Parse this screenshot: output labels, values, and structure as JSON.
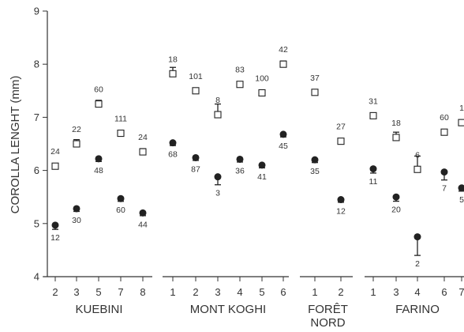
{
  "chart_data": {
    "type": "scatter",
    "ylabel": "COROLLA LENGHT (mm)",
    "ylim": [
      4,
      9
    ],
    "yticks": [
      4,
      5,
      6,
      7,
      8,
      9
    ],
    "groups": [
      {
        "name": "KUEBINI",
        "name_lines": [
          "KUEBINI"
        ],
        "points": [
          {
            "x_label": "2",
            "square": {
              "y": 6.08,
              "n": "24",
              "err": 0.0
            },
            "circle": {
              "y": 4.97,
              "n": "12",
              "err": 0.08
            }
          },
          {
            "x_label": "3",
            "square": {
              "y": 6.5,
              "n": "22",
              "err": 0.08
            },
            "circle": {
              "y": 5.28,
              "n": "30",
              "err": 0.0
            }
          },
          {
            "x_label": "5",
            "square": {
              "y": 7.25,
              "n": "60",
              "err": 0.07
            },
            "circle": {
              "y": 6.22,
              "n": "48",
              "err": 0.0
            }
          },
          {
            "x_label": "7",
            "square": {
              "y": 6.7,
              "n": "111",
              "err": 0.0
            },
            "circle": {
              "y": 5.47,
              "n": "60",
              "err": 0.0
            }
          },
          {
            "x_label": "8",
            "square": {
              "y": 6.35,
              "n": "24",
              "err": 0.06
            },
            "circle": {
              "y": 5.2,
              "n": "44",
              "err": 0.0
            }
          }
        ]
      },
      {
        "name": "MONT KOGHI",
        "name_lines": [
          "MONT KOGHI"
        ],
        "points": [
          {
            "x_label": "1",
            "square": {
              "y": 7.82,
              "n": "18",
              "err": 0.12
            },
            "circle": {
              "y": 6.52,
              "n": "68",
              "err": 0.0
            }
          },
          {
            "x_label": "2",
            "square": {
              "y": 7.5,
              "n": "101",
              "err": 0.0
            },
            "circle": {
              "y": 6.24,
              "n": "87",
              "err": 0.0
            }
          },
          {
            "x_label": "3",
            "square": {
              "y": 7.05,
              "n": "8",
              "err": 0.2
            },
            "circle": {
              "y": 5.88,
              "n": "3",
              "err": 0.15
            }
          },
          {
            "x_label": "4",
            "square": {
              "y": 7.62,
              "n": "83",
              "err": 0.05
            },
            "circle": {
              "y": 6.21,
              "n": "36",
              "err": 0.0
            }
          },
          {
            "x_label": "5",
            "square": {
              "y": 7.46,
              "n": "100",
              "err": 0.0
            },
            "circle": {
              "y": 6.1,
              "n": "41",
              "err": 0.0
            }
          },
          {
            "x_label": "6",
            "square": {
              "y": 8.0,
              "n": "42",
              "err": 0.06
            },
            "circle": {
              "y": 6.68,
              "n": "45",
              "err": 0.05
            }
          }
        ]
      },
      {
        "name": "FORÊT NORD",
        "name_lines": [
          "FORÊT",
          "NORD"
        ],
        "points": [
          {
            "x_label": "1",
            "square": {
              "y": 7.47,
              "n": "37",
              "err": 0.05
            },
            "circle": {
              "y": 6.2,
              "n": "35",
              "err": 0.0
            }
          },
          {
            "x_label": "2",
            "square": {
              "y": 6.55,
              "n": "27",
              "err": 0.04
            },
            "circle": {
              "y": 5.45,
              "n": "12",
              "err": 0.05
            }
          }
        ]
      },
      {
        "name": "FARINO",
        "name_lines": [
          "FARINO"
        ],
        "points": [
          {
            "x_label": "1",
            "square": {
              "y": 7.03,
              "n": "31",
              "err": 0.04
            },
            "circle": {
              "y": 6.03,
              "n": "11",
              "err": 0.08
            }
          },
          {
            "x_label": "3",
            "square": {
              "y": 6.62,
              "n": "18",
              "err": 0.1
            },
            "circle": {
              "y": 5.5,
              "n": "20",
              "err": 0.08
            }
          },
          {
            "x_label": "4",
            "square": {
              "y": 6.02,
              "n": "6",
              "err": 0.25
            },
            "circle": {
              "y": 4.75,
              "n": "2",
              "err": 0.35
            }
          },
          {
            "x_label": "6",
            "square": {
              "y": 6.72,
              "n": "60",
              "err": 0.0
            },
            "circle": {
              "y": 5.97,
              "n": "7",
              "err": 0.15
            }
          },
          {
            "x_label": "7",
            "square": {
              "y": 6.9,
              "n": "1",
              "err": 0.0
            },
            "circle": {
              "y": 5.67,
              "n": "5",
              "err": 0.06
            }
          }
        ]
      }
    ]
  }
}
